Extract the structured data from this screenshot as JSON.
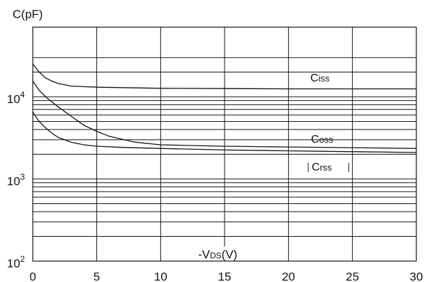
{
  "chart_data": {
    "type": "line",
    "title": "",
    "xlabel": "-V",
    "xlabel_sub": "DS",
    "xlabel_unit": "(V)",
    "ylabel": "C(pF)",
    "xlim": [
      0,
      30
    ],
    "ylim": [
      100,
      30000
    ],
    "y_scale": "log",
    "grid": true,
    "x_ticks": [
      0,
      5,
      10,
      15,
      20,
      25,
      30
    ],
    "x_tick_labels": [
      "0",
      "5",
      "10",
      "15",
      "20",
      "25",
      "30"
    ],
    "y_tick_labels": [
      {
        "value": 100,
        "base": "10",
        "exp": "2"
      },
      {
        "value": 1000,
        "base": "10",
        "exp": "3"
      },
      {
        "value": 10000,
        "base": "10",
        "exp": "4"
      }
    ],
    "series": [
      {
        "name": "Ciss",
        "label_main": "C",
        "label_sub": "iss",
        "boxed": false,
        "x": [
          0,
          0.5,
          1,
          1.5,
          2,
          3,
          5,
          10,
          15,
          20,
          25,
          30
        ],
        "y": [
          25000,
          20000,
          17000,
          15500,
          14500,
          13500,
          13100,
          12700,
          12600,
          12500,
          12500,
          12500
        ]
      },
      {
        "name": "Coss",
        "label_main": "C",
        "label_sub": "oss",
        "boxed": false,
        "x": [
          0,
          0.5,
          1,
          2,
          3,
          4,
          5,
          6,
          8,
          10,
          15,
          20,
          25,
          30
        ],
        "y": [
          15500,
          12000,
          10000,
          7500,
          5800,
          4500,
          3800,
          3300,
          2800,
          2600,
          2500,
          2450,
          2400,
          2350
        ]
      },
      {
        "name": "Crss",
        "label_main": "C",
        "label_sub": "rss",
        "boxed": true,
        "x": [
          0,
          0.5,
          1,
          1.5,
          2,
          3,
          4,
          5,
          7,
          10,
          15,
          20,
          25,
          30
        ],
        "y": [
          6500,
          5000,
          4200,
          3600,
          3200,
          2800,
          2600,
          2500,
          2420,
          2350,
          2250,
          2200,
          2150,
          2100
        ]
      }
    ]
  }
}
